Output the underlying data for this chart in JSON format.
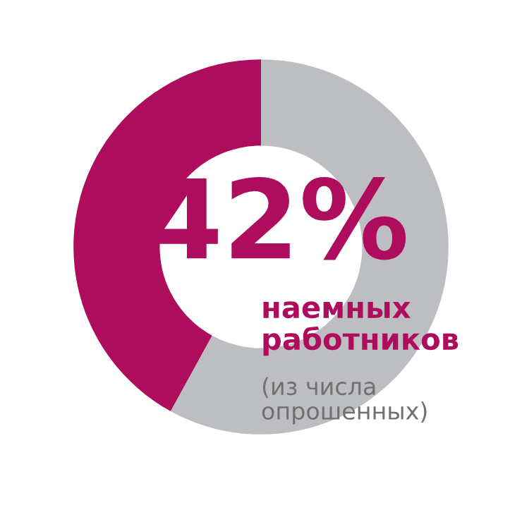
{
  "chart_data": {
    "type": "donut",
    "categories": [
      null,
      null
    ],
    "values": [
      42,
      58
    ],
    "colors": [
      "#ad0d5c",
      "#bdbec1"
    ],
    "annotations": [
      "42%",
      "наемных\nработников",
      "(из числа\nопрошенных)"
    ]
  }
}
